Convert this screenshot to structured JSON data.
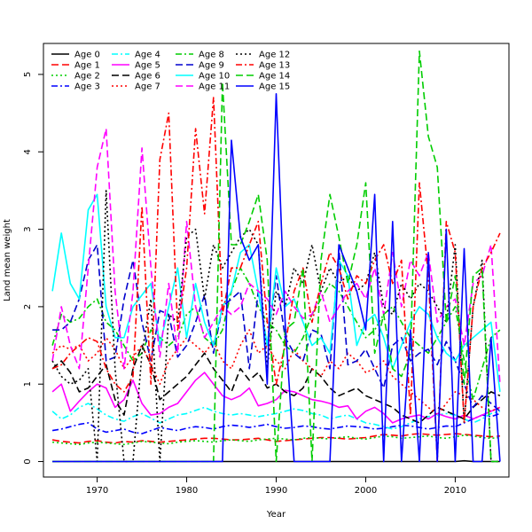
{
  "chart_data": {
    "type": "line",
    "xlabel": "Year",
    "ylabel": "Land mean weight",
    "xlim": [
      1964,
      2016
    ],
    "ylim": [
      -0.2,
      5.4
    ],
    "xticks": [
      1970,
      1980,
      1990,
      2000,
      2010
    ],
    "yticks": [
      0,
      1,
      2,
      3,
      4,
      5
    ],
    "grid": false,
    "legend_position": "top-left",
    "x": [
      1965,
      1966,
      1967,
      1968,
      1969,
      1970,
      1971,
      1972,
      1973,
      1974,
      1975,
      1976,
      1977,
      1978,
      1979,
      1980,
      1981,
      1982,
      1983,
      1984,
      1985,
      1986,
      1987,
      1988,
      1989,
      1990,
      1991,
      1992,
      1993,
      1994,
      1995,
      1996,
      1997,
      1998,
      1999,
      2000,
      2001,
      2002,
      2003,
      2004,
      2005,
      2006,
      2007,
      2008,
      2009,
      2010,
      2011,
      2012,
      2013,
      2014,
      2015
    ],
    "series": [
      {
        "name": "Age 0",
        "color": "#000000",
        "dash": "solid",
        "values": [
          0,
          0,
          0,
          0,
          0,
          0,
          0,
          0,
          0,
          0,
          0,
          0,
          0,
          0,
          0,
          0,
          0,
          0,
          0,
          0,
          0,
          0,
          0,
          0,
          0,
          0,
          0,
          0,
          0,
          0,
          0,
          0,
          0,
          0,
          0,
          0,
          0,
          0,
          0,
          0,
          0,
          0,
          0,
          0,
          0,
          0,
          0.01,
          0,
          0,
          0,
          0
        ]
      },
      {
        "name": "Age 1",
        "color": "#ff0000",
        "dash": "dash",
        "values": [
          0.28,
          0.26,
          0.25,
          0.24,
          0.26,
          0.27,
          0.25,
          0.24,
          0.26,
          0.25,
          0.27,
          0.26,
          0.25,
          0.26,
          0.27,
          0.28,
          0.29,
          0.3,
          0.3,
          0.29,
          0.28,
          0.28,
          0.29,
          0.3,
          0.28,
          0.26,
          0.27,
          0.28,
          0.29,
          0.3,
          0.31,
          0.31,
          0.3,
          0.29,
          0.3,
          0.31,
          0.33,
          0.35,
          0.34,
          0.33,
          0.35,
          0.36,
          0.35,
          0.34,
          0.35,
          0.36,
          0.35,
          0.34,
          0.33,
          0.32,
          0.33
        ]
      },
      {
        "name": "Age 2",
        "color": "#00cd00",
        "dash": "dot",
        "values": [
          0.25,
          0.24,
          0.23,
          0.22,
          0.24,
          0.25,
          0.24,
          0.23,
          0.22,
          0.24,
          0.26,
          0.25,
          0.24,
          0.23,
          0.25,
          0.26,
          0.27,
          0.26,
          0.25,
          0.27,
          0.28,
          0.27,
          0.26,
          0.28,
          0.29,
          0.3,
          0.29,
          0.28,
          0.3,
          0.31,
          0.3,
          0.29,
          0.31,
          0.32,
          0.3,
          0.29,
          0.31,
          0.33,
          0.32,
          0.3,
          0.31,
          0.32,
          0.33,
          0.31,
          0.3,
          0.32,
          0.34,
          0.33,
          0.31,
          0.3,
          0.31
        ]
      },
      {
        "name": "Age 3",
        "color": "#0000ff",
        "dash": "dashdot",
        "values": [
          0.4,
          0.42,
          0.45,
          0.48,
          0.5,
          0.42,
          0.38,
          0.4,
          0.42,
          0.38,
          0.36,
          0.4,
          0.44,
          0.42,
          0.4,
          0.43,
          0.45,
          0.44,
          0.42,
          0.45,
          0.47,
          0.46,
          0.44,
          0.46,
          0.48,
          0.45,
          0.43,
          0.44,
          0.46,
          0.45,
          0.43,
          0.42,
          0.44,
          0.46,
          0.45,
          0.44,
          0.42,
          0.43,
          0.45,
          0.47,
          0.46,
          0.44,
          0.42,
          0.44,
          0.46,
          0.45,
          0.5,
          0.55,
          0.6,
          0.58,
          0.62
        ]
      },
      {
        "name": "Age 4",
        "color": "#00ffff",
        "dash": "dashdot",
        "values": [
          0.65,
          0.55,
          0.6,
          0.7,
          0.75,
          0.68,
          0.6,
          0.55,
          0.52,
          0.58,
          0.62,
          0.56,
          0.5,
          0.55,
          0.6,
          0.62,
          0.66,
          0.7,
          0.65,
          0.62,
          0.6,
          0.62,
          0.6,
          0.58,
          0.6,
          0.62,
          0.65,
          0.68,
          0.66,
          0.62,
          0.6,
          0.55,
          0.58,
          0.6,
          0.55,
          0.5,
          0.48,
          0.45,
          0.42,
          0.45,
          0.5,
          0.55,
          0.58,
          0.6,
          0.62,
          0.6,
          0.55,
          0.5,
          0.55,
          0.62,
          0.65
        ]
      },
      {
        "name": "Age 5",
        "color": "#ff00ff",
        "dash": "solid",
        "values": [
          0.9,
          1.0,
          0.65,
          0.78,
          0.9,
          1.0,
          0.95,
          0.7,
          0.8,
          1.05,
          0.75,
          0.6,
          0.62,
          0.7,
          0.75,
          0.9,
          1.05,
          1.15,
          1.0,
          0.85,
          0.8,
          0.85,
          0.95,
          0.72,
          0.75,
          0.8,
          0.92,
          0.9,
          0.85,
          0.8,
          0.78,
          0.75,
          0.7,
          0.72,
          0.55,
          0.65,
          0.7,
          0.62,
          0.5,
          0.55,
          0.58,
          0.6,
          0.55,
          0.62,
          0.58,
          0.55,
          0.6,
          0.55,
          0.6,
          0.65,
          0.7
        ]
      },
      {
        "name": "Age 6",
        "color": "#000000",
        "dash": "dash",
        "values": [
          1.2,
          1.3,
          1.15,
          0.9,
          0.95,
          1.1,
          1.25,
          0.8,
          0.6,
          1.2,
          1.5,
          1.25,
          0.8,
          0.9,
          1.0,
          1.1,
          1.25,
          1.4,
          1.2,
          1.05,
          0.9,
          1.2,
          1.05,
          1.15,
          0.95,
          1.0,
          0.9,
          0.85,
          0.95,
          1.2,
          1.1,
          0.95,
          0.85,
          0.9,
          0.95,
          0.85,
          0.8,
          0.75,
          0.7,
          0.6,
          0.55,
          0.5,
          0.6,
          0.7,
          0.65,
          0.6,
          0.55,
          0.7,
          0.8,
          0.9,
          0.85
        ]
      },
      {
        "name": "Age 7",
        "color": "#ff0000",
        "dash": "dot",
        "values": [
          1.4,
          1.5,
          1.45,
          1.5,
          1.3,
          1.4,
          1.6,
          1.45,
          1.2,
          1.35,
          1.5,
          1.25,
          1.0,
          1.3,
          1.45,
          1.6,
          1.5,
          1.4,
          1.55,
          1.3,
          1.2,
          1.5,
          1.7,
          1.4,
          1.5,
          1.3,
          1.2,
          1.45,
          1.3,
          1.2,
          1.1,
          1.3,
          1.2,
          1.4,
          1.3,
          1.15,
          1.2,
          1.3,
          1.1,
          1.0,
          0.9,
          0.8,
          0.7,
          0.6,
          0.75,
          0.9,
          0.85,
          0.8,
          0.7,
          0.65,
          0.7
        ]
      },
      {
        "name": "Age 8",
        "color": "#00cd00",
        "dash": "dashdot",
        "values": [
          1.5,
          1.9,
          1.8,
          1.85,
          2.0,
          2.1,
          1.8,
          1.7,
          1.5,
          1.3,
          1.4,
          1.7,
          1.6,
          1.5,
          1.6,
          1.9,
          2.0,
          1.6,
          1.5,
          1.7,
          2.2,
          2.5,
          2.3,
          2.0,
          1.8,
          1.7,
          1.5,
          1.4,
          1.6,
          1.9,
          2.1,
          2.3,
          2.2,
          2.0,
          1.8,
          1.6,
          1.7,
          1.9,
          2.0,
          1.8,
          1.6,
          1.5,
          1.4,
          1.6,
          1.8,
          2.0,
          1.3,
          0.8,
          1.2,
          1.6,
          1.7
        ]
      },
      {
        "name": "Age 9",
        "color": "#0000cd",
        "dash": "dash",
        "values": [
          1.7,
          1.7,
          1.8,
          2.1,
          2.6,
          2.8,
          1.3,
          1.35,
          2.1,
          2.6,
          1.8,
          1.3,
          1.95,
          1.9,
          1.35,
          1.5,
          1.8,
          2.15,
          1.4,
          2.0,
          2.1,
          2.2,
          1.2,
          2.2,
          1.5,
          2.4,
          1.6,
          1.4,
          1.3,
          1.7,
          1.65,
          1.2,
          2.75,
          1.25,
          1.3,
          1.45,
          1.2,
          0.95,
          1.5,
          1.6,
          1.3,
          1.4,
          1.45,
          1.25,
          1.55,
          1.3,
          1.0,
          0.7,
          0.85,
          0.75,
          0.65
        ]
      },
      {
        "name": "Age 10",
        "color": "#00ffff",
        "dash": "solid",
        "values": [
          2.2,
          2.95,
          2.3,
          2.1,
          3.25,
          3.45,
          2.0,
          1.6,
          1.6,
          2.0,
          2.15,
          2.3,
          1.5,
          2.0,
          2.5,
          1.6,
          2.3,
          1.8,
          1.5,
          2.0,
          2.2,
          2.7,
          2.8,
          2.2,
          1.5,
          2.5,
          2.0,
          2.1,
          1.8,
          1.5,
          1.6,
          1.4,
          2.6,
          2.4,
          1.5,
          1.8,
          1.9,
          1.6,
          1.2,
          1.5,
          1.8,
          2.0,
          1.9,
          1.6,
          1.4,
          1.3,
          1.5,
          1.6,
          1.7,
          1.8,
          0.9
        ]
      },
      {
        "name": "Age 11",
        "color": "#ff00ff",
        "dash": "dash",
        "values": [
          1.3,
          2.0,
          1.5,
          1.2,
          2.5,
          3.8,
          4.3,
          2.2,
          1.2,
          2.2,
          4.05,
          2.5,
          1.35,
          2.3,
          1.4,
          3.1,
          2.0,
          1.6,
          1.8,
          2.0,
          1.9,
          2.0,
          2.3,
          2.2,
          2.1,
          1.9,
          2.2,
          2.0,
          1.85,
          1.9,
          2.2,
          1.8,
          2.0,
          2.2,
          2.3,
          2.1,
          2.5,
          1.9,
          2.7,
          2.0,
          2.6,
          2.4,
          2.7,
          1.8,
          2.0,
          2.1,
          1.5,
          2.3,
          2.4,
          2.8,
          1.0
        ]
      },
      {
        "name": "Age 12",
        "color": "#000000",
        "dash": "dot",
        "values": [
          1.3,
          1.1,
          1.0,
          1.05,
          1.2,
          0.0,
          3.5,
          1.2,
          0.0,
          0.0,
          1.4,
          2.1,
          0.0,
          1.9,
          1.8,
          2.9,
          3.0,
          2.1,
          2.8,
          2.5,
          2.7,
          2.9,
          3.0,
          2.8,
          1.2,
          2.2,
          2.0,
          2.5,
          2.3,
          2.8,
          2.2,
          2.5,
          2.3,
          2.4,
          2.2,
          2.3,
          2.7,
          2.0,
          1.9,
          2.3,
          2.1,
          2.3,
          2.2,
          2.0,
          1.8,
          2.8,
          0.5,
          2.0,
          2.6,
          0.0,
          0.0
        ]
      },
      {
        "name": "Age 13",
        "color": "#ff0000",
        "dash": "dashdot",
        "values": [
          1.2,
          1.25,
          1.4,
          1.5,
          1.6,
          1.55,
          1.2,
          1.0,
          0.9,
          1.1,
          3.3,
          1.0,
          3.9,
          4.5,
          1.7,
          2.5,
          4.3,
          3.2,
          4.7,
          1.9,
          2.5,
          2.5,
          2.8,
          3.1,
          1.8,
          1.0,
          1.5,
          2.2,
          2.5,
          1.8,
          2.3,
          2.7,
          2.5,
          2.1,
          2.4,
          2.3,
          2.6,
          2.8,
          2.3,
          2.6,
          0.6,
          3.6,
          2.4,
          0.0,
          3.1,
          2.7,
          0.5,
          2.0,
          2.5,
          2.7,
          2.95
        ]
      },
      {
        "name": "Age 14",
        "color": "#00cd00",
        "dash": "dash",
        "values": [
          0.0,
          0.0,
          0.0,
          0.0,
          0.0,
          0.0,
          0.0,
          0.0,
          0.0,
          0.0,
          0.0,
          0.0,
          0.0,
          0.0,
          0.0,
          0.0,
          0.0,
          0.0,
          0.0,
          4.9,
          2.8,
          2.8,
          3.1,
          3.45,
          2.6,
          0.0,
          1.7,
          1.8,
          2.5,
          0.0,
          2.6,
          3.45,
          2.9,
          2.3,
          2.8,
          3.6,
          1.4,
          1.9,
          1.2,
          1.1,
          1.4,
          5.3,
          4.2,
          3.8,
          1.8,
          2.4,
          1.0,
          2.4,
          2.5,
          0.0,
          0.0
        ]
      },
      {
        "name": "Age 15",
        "color": "#0000ff",
        "dash": "solid",
        "values": [
          0.0,
          0.0,
          0.0,
          0.0,
          0.0,
          0.0,
          0.0,
          0.0,
          0.0,
          0.0,
          0.0,
          0.0,
          0.0,
          0.0,
          0.0,
          0.0,
          0.0,
          0.0,
          0.0,
          0.0,
          4.15,
          2.9,
          2.6,
          2.8,
          1.0,
          4.75,
          1.8,
          0.0,
          0.0,
          0.0,
          0.0,
          0.0,
          2.8,
          2.5,
          2.2,
          1.7,
          3.45,
          0.0,
          3.1,
          0.0,
          1.7,
          0.0,
          2.7,
          0.0,
          3.0,
          0.0,
          2.75,
          0.0,
          0.0,
          1.6,
          0.0
        ]
      }
    ]
  }
}
